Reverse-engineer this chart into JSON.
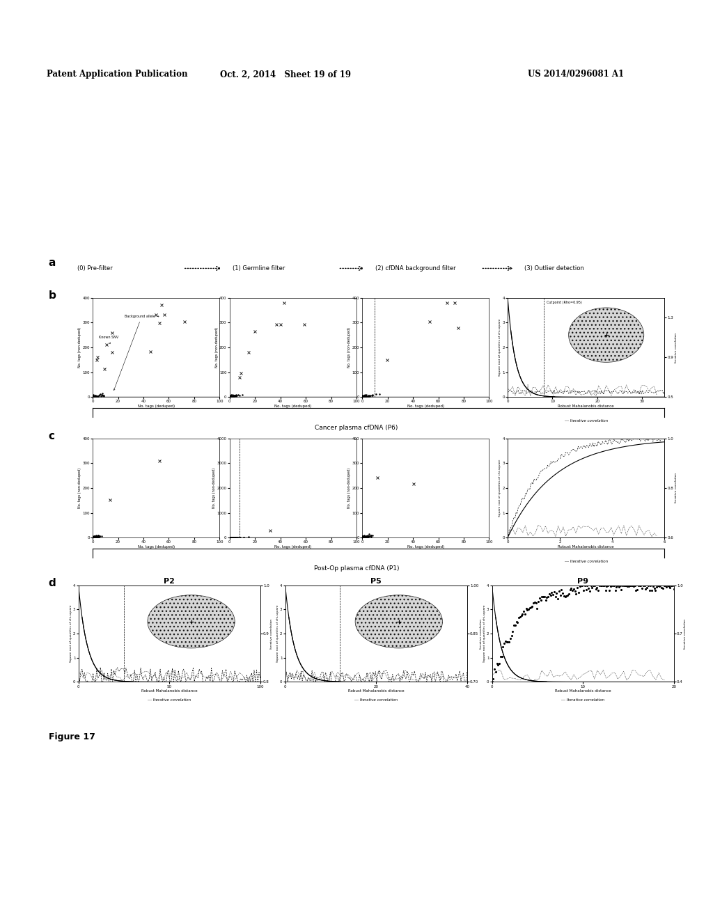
{
  "header_left": "Patent Application Publication",
  "header_mid": "Oct. 2, 2014   Sheet 19 of 19",
  "header_right": "US 2014/0296081 A1",
  "panel_a_label": "a",
  "panel_b_label": "b",
  "panel_c_label": "c",
  "panel_d_label": "d",
  "filter_steps": [
    "(0) Pre-filter",
    "(1) Germline filter",
    "(2) cfDNA background filter",
    "(3) Outlier detection"
  ],
  "cancer_label": "Cancer plasma cfDNA (P6)",
  "postop_label": "Post-Op plasma cfDNA (P1)",
  "p2_label": "P2",
  "p5_label": "P5",
  "p9_label": "P9",
  "figure_label": "Figure 17",
  "background_color": "#ffffff",
  "ellipse_color": "#d0d0d0",
  "xlabel_scatter": "No. tags (deduped)",
  "ylabel_scatter": "No. tags (non-deduped)",
  "xlabel_outlier": "Robust Mahalanobis distance",
  "ylabel_outlier_left": "Square root of quantiles of chi-square",
  "ylabel_outlier_right": "Iterative correlation",
  "iterative_legend": "--- Iterative correlation",
  "cutpoint_label": "Cutpoint (Rho=0.95)"
}
